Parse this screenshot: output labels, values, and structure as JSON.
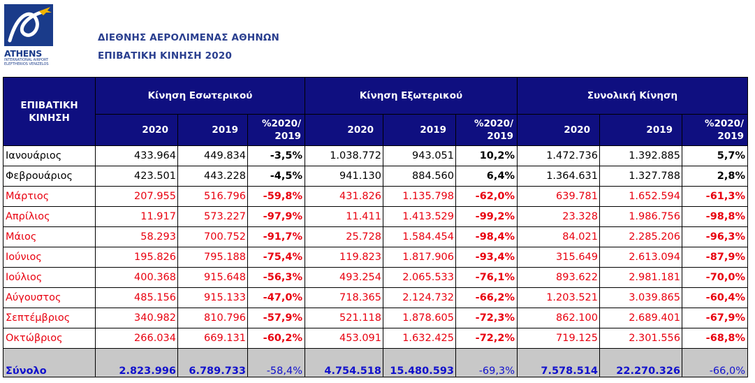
{
  "logo": {
    "name": "ATHENS",
    "subtitle1": "INTERNATIONAL AIRPORT",
    "subtitle2": "ELEFTHERIOS VENIZELOS",
    "brand_color": "#1a3b8a"
  },
  "header": {
    "title": "ΔΙΕΘΝΗΣ ΑΕΡΟΛΙΜΕΝΑΣ ΑΘΗΝΩΝ",
    "subtitle": "ΕΠΙΒΑΤΙΚΗ ΚΙΝΗΣΗ 2020"
  },
  "table": {
    "corner_label_line1": "ΕΠΙΒΑΤΙΚΗ",
    "corner_label_line2": "ΚΙΝΗΣΗ",
    "groups": [
      "Κίνηση Εσωτερικού",
      "Κίνηση Εξωτερικού",
      "Συνολική Κίνηση"
    ],
    "sub_headers": {
      "year_current": "2020",
      "year_previous": "2019",
      "pct_line1": "%2020/",
      "pct_line2": "2019"
    },
    "rows": [
      {
        "month": "Ιανουάριος",
        "dom": [
          "433.964",
          "449.834",
          "-3,5%"
        ],
        "intl": [
          "1.038.772",
          "943.051",
          "10,2%"
        ],
        "total": [
          "1.472.736",
          "1.392.885",
          "5,7%"
        ],
        "highlight": false
      },
      {
        "month": "Φεβρουάριος",
        "dom": [
          "423.501",
          "443.228",
          "-4,5%"
        ],
        "intl": [
          "941.130",
          "884.560",
          "6,4%"
        ],
        "total": [
          "1.364.631",
          "1.327.788",
          "2,8%"
        ],
        "highlight": false
      },
      {
        "month": "Μάρτιος",
        "dom": [
          "207.955",
          "516.796",
          "-59,8%"
        ],
        "intl": [
          "431.826",
          "1.135.798",
          "-62,0%"
        ],
        "total": [
          "639.781",
          "1.652.594",
          "-61,3%"
        ],
        "highlight": true
      },
      {
        "month": "Απρίλιος",
        "dom": [
          "11.917",
          "573.227",
          "-97,9%"
        ],
        "intl": [
          "11.411",
          "1.413.529",
          "-99,2%"
        ],
        "total": [
          "23.328",
          "1.986.756",
          "-98,8%"
        ],
        "highlight": true
      },
      {
        "month": "Μάιος",
        "dom": [
          "58.293",
          "700.752",
          "-91,7%"
        ],
        "intl": [
          "25.728",
          "1.584.454",
          "-98,4%"
        ],
        "total": [
          "84.021",
          "2.285.206",
          "-96,3%"
        ],
        "highlight": true
      },
      {
        "month": "Ιούνιος",
        "dom": [
          "195.826",
          "795.188",
          "-75,4%"
        ],
        "intl": [
          "119.823",
          "1.817.906",
          "-93,4%"
        ],
        "total": [
          "315.649",
          "2.613.094",
          "-87,9%"
        ],
        "highlight": true
      },
      {
        "month": "Ιούλιος",
        "dom": [
          "400.368",
          "915.648",
          "-56,3%"
        ],
        "intl": [
          "493.254",
          "2.065.533",
          "-76,1%"
        ],
        "total": [
          "893.622",
          "2.981.181",
          "-70,0%"
        ],
        "highlight": true
      },
      {
        "month": "Αύγουστος",
        "dom": [
          "485.156",
          "915.133",
          "-47,0%"
        ],
        "intl": [
          "718.365",
          "2.124.732",
          "-66,2%"
        ],
        "total": [
          "1.203.521",
          "3.039.865",
          "-60,4%"
        ],
        "highlight": true
      },
      {
        "month": "Σεπτέμβριος",
        "dom": [
          "340.982",
          "810.796",
          "-57,9%"
        ],
        "intl": [
          "521.118",
          "1.878.605",
          "-72,3%"
        ],
        "total": [
          "862.100",
          "2.689.401",
          "-67,9%"
        ],
        "highlight": true
      },
      {
        "month": "Οκτώβριος",
        "dom": [
          "266.034",
          "669.131",
          "-60,2%"
        ],
        "intl": [
          "453.091",
          "1.632.425",
          "-72,2%"
        ],
        "total": [
          "719.125",
          "2.301.556",
          "-68,8%"
        ],
        "highlight": true
      }
    ],
    "total_row": {
      "label": "Σύνολο",
      "dom": [
        "2.823.996",
        "6.789.733",
        "-58,4%"
      ],
      "intl": [
        "4.754.518",
        "15.480.593",
        "-69,3%"
      ],
      "total": [
        "7.578.514",
        "22.270.326",
        "-66,0%"
      ]
    }
  },
  "colors": {
    "header_bg": "#0f0f80",
    "header_text": "#ffffff",
    "negative_text": "#e8000f",
    "total_text": "#1111cc",
    "total_bg": "#c8c8c8",
    "title_text": "#2a3f8f"
  }
}
